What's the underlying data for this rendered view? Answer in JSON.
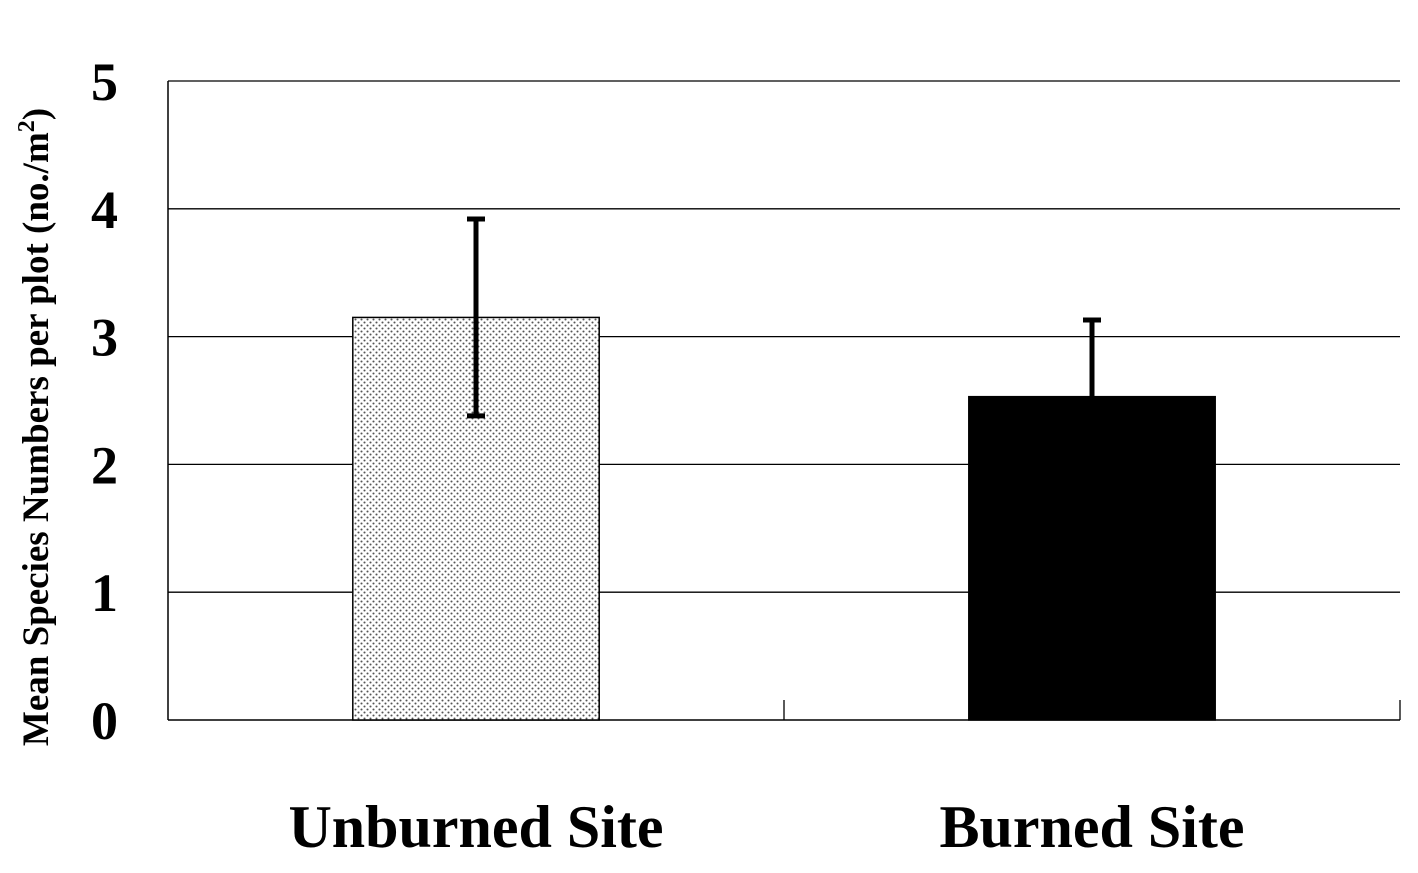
{
  "chart_data": {
    "type": "bar",
    "categories": [
      "Unburned Site",
      "Burned Site"
    ],
    "values": [
      3.15,
      2.53
    ],
    "error_upper": [
      3.92,
      3.13
    ],
    "error_lower": [
      2.38,
      null
    ],
    "ylabel": {
      "main": "Mean Species Numbers per plot (no./m",
      "sup": "2",
      "close": ")"
    },
    "ylim": [
      0,
      5
    ],
    "yticks": [
      "0",
      "1",
      "2",
      "3",
      "4",
      "5"
    ],
    "grid": true,
    "colors": {
      "unburned": "dotted-light-gray",
      "burned": "#000000",
      "gridline": "#000000",
      "errorbar": "#000000"
    }
  }
}
